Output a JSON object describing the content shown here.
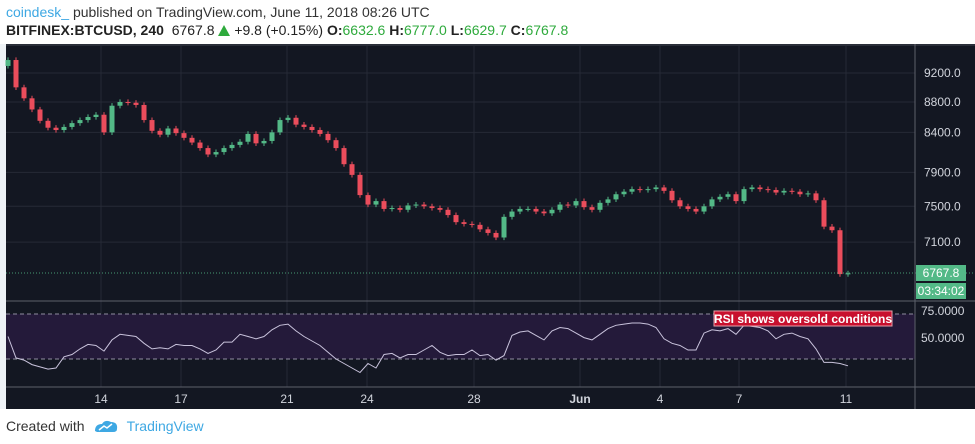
{
  "header": {
    "publisher": "coindesk_",
    "published_text": "published on TradingView.com, June 11, 2018 08:26 UTC",
    "symbol": "BITFINEX:BTCUSD, 240",
    "last": "6767.8",
    "change": "+9.8 (+0.15%)",
    "o_label": "O:",
    "o": "6632.6",
    "h_label": "H:",
    "h": "6777.0",
    "l_label": "L:",
    "l": "6629.7",
    "c_label": "C:",
    "c": "6767.8"
  },
  "footer": {
    "created_with": "Created with",
    "brand": "TradingView"
  },
  "colors": {
    "background": "#131722",
    "up": "#53b987",
    "down": "#eb4d5c",
    "rsi_line": "#c9c3dc",
    "rsi_band": "#241a3a",
    "annotation_bg": "#c8102e",
    "price_tag": "#53b987"
  },
  "chart_data": [
    {
      "type": "candlestick",
      "scale": "log",
      "price_ticks": [
        9200,
        8800,
        8400,
        7900,
        7500,
        7100
      ],
      "price_tick_labels": [
        "9200.0",
        "8800.0",
        "8400.0",
        "7900.0",
        "7500.0",
        "7100.0"
      ],
      "last_price_label": "6767.8",
      "countdown_label": "03:34:02",
      "x_tick_labels": [
        "14",
        "17",
        "21",
        "24",
        "28",
        "Jun",
        "4",
        "7",
        "11"
      ],
      "first_open": 9300,
      "closes": [
        9385,
        9000,
        8850,
        8700,
        8550,
        8460,
        8430,
        8470,
        8520,
        8560,
        8600,
        8630,
        8400,
        8750,
        8800,
        8790,
        8760,
        8560,
        8420,
        8370,
        8450,
        8390,
        8330,
        8270,
        8200,
        8120,
        8150,
        8200,
        8240,
        8280,
        8380,
        8260,
        8290,
        8400,
        8560,
        8590,
        8500,
        8470,
        8430,
        8380,
        8300,
        8200,
        8000,
        7870,
        7630,
        7520,
        7560,
        7470,
        7480,
        7460,
        7510,
        7520,
        7500,
        7480,
        7460,
        7400,
        7320,
        7300,
        7290,
        7240,
        7200,
        7150,
        7380,
        7440,
        7470,
        7470,
        7440,
        7420,
        7460,
        7520,
        7510,
        7560,
        7490,
        7460,
        7540,
        7580,
        7640,
        7670,
        7700,
        7690,
        7700,
        7720,
        7680,
        7570,
        7500,
        7470,
        7440,
        7500,
        7580,
        7610,
        7640,
        7560,
        7700,
        7720,
        7700,
        7690,
        7660,
        7680,
        7670,
        7640,
        7650,
        7570,
        7270,
        7230,
        6760,
        6767.8
      ]
    },
    {
      "type": "line",
      "name": "RSI",
      "levels": [
        70,
        30
      ],
      "tick_labels": [
        "75.0000",
        "50.0000"
      ],
      "annotation": "RSI shows oversold conditions",
      "values": [
        50,
        31,
        29,
        25,
        23,
        21,
        22,
        32,
        34,
        39,
        43,
        42,
        37,
        47,
        52,
        51,
        50,
        44,
        39,
        40,
        39,
        43,
        42,
        42,
        39,
        35,
        38,
        45,
        45,
        52,
        50,
        48,
        50,
        56,
        60,
        61,
        55,
        50,
        46,
        42,
        36,
        30,
        26,
        22,
        18,
        26,
        22,
        34,
        35,
        31,
        34,
        34,
        38,
        42,
        36,
        33,
        34,
        34,
        38,
        33,
        34,
        29,
        33,
        51,
        54,
        55,
        51,
        47,
        55,
        58,
        57,
        53,
        49,
        47,
        52,
        57,
        60,
        61,
        62,
        62,
        61,
        58,
        48,
        44,
        42,
        38,
        38,
        53,
        56,
        55,
        57,
        52,
        60,
        59,
        58,
        55,
        48,
        52,
        53,
        50,
        48,
        39,
        27,
        27,
        26,
        24
      ]
    }
  ]
}
